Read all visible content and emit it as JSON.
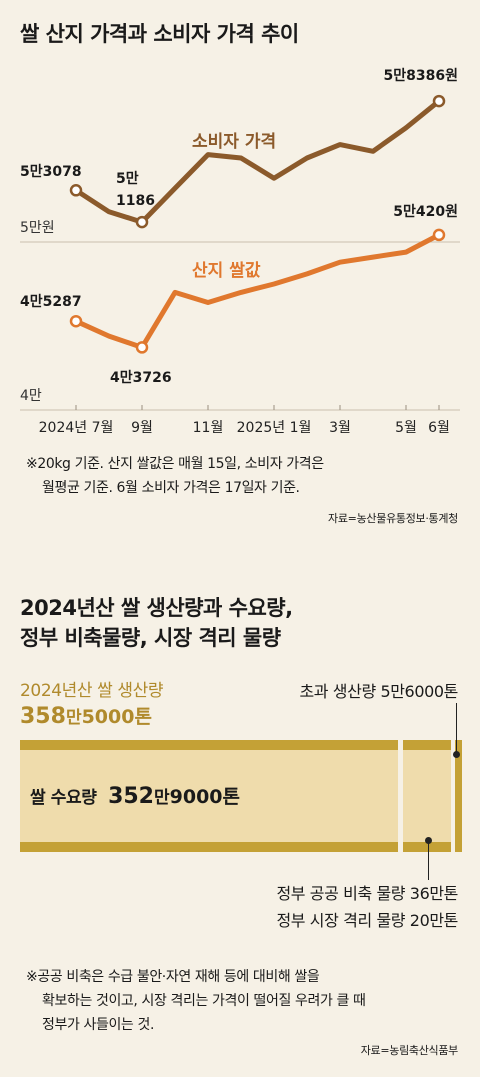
{
  "chart1": {
    "title": "쌀 산지 가격과 소비자 가격 추이",
    "xlabels": [
      {
        "label": "2024년 7월",
        "m": 0
      },
      {
        "label": "9월",
        "m": 2
      },
      {
        "label": "11월",
        "m": 4
      },
      {
        "label": "2025년 1월",
        "m": 6
      },
      {
        "label": "3월",
        "m": 8
      },
      {
        "label": "5월",
        "m": 10
      },
      {
        "label": "6월",
        "m": 11
      }
    ],
    "ylabels": [
      {
        "label": "5만원",
        "v": 50000
      },
      {
        "label": "4만",
        "v": 40000
      }
    ],
    "annotations": {
      "consumer_start": "5만3078",
      "consumer_low_1": "5만",
      "consumer_low_2": "1186",
      "consumer_end": "5만8386원",
      "farm_start": "4만5287",
      "farm_low": "4만3726",
      "farm_end": "5만420원"
    },
    "series_labels": {
      "consumer": "소비자 가격",
      "farm": "산지 쌀값"
    },
    "colors": {
      "consumer": "#8b5a2b",
      "farm": "#e0782e"
    },
    "note_1": "※20kg 기준. 산지 쌀값은 매월 15일, 소비자 가격은",
    "note_2": "월평균 기준. 6월 소비자 가격은 17일자 기준.",
    "source": "자료=농산물유통정보·통계청"
  },
  "chart_data": {
    "type": "line",
    "x": [
      "2024-07",
      "2024-08",
      "2024-09",
      "2024-10",
      "2024-11",
      "2024-12",
      "2025-01",
      "2025-02",
      "2025-03",
      "2025-04",
      "2025-05",
      "2025-06"
    ],
    "series": [
      {
        "name": "소비자 가격",
        "values": [
          53078,
          51800,
          51186,
          53200,
          55200,
          55000,
          53800,
          55000,
          55800,
          55400,
          56800,
          58386
        ]
      },
      {
        "name": "산지 쌀값",
        "values": [
          45287,
          44400,
          43726,
          47000,
          46400,
          47000,
          47500,
          48100,
          48800,
          49100,
          49400,
          50420
        ]
      }
    ],
    "ylim": [
      40000,
      60000
    ],
    "y_unit": "원"
  },
  "chart2": {
    "title_1": "2024년산 쌀 생산량과 수요량,",
    "title_2": "정부 비축물량, 시장 격리 물량",
    "production_label": "2024년산 쌀 생산량",
    "production_value_a": "358",
    "production_value_b": "만",
    "production_value_c": "5000톤",
    "surplus_label": "초과 생산량 5만6000톤",
    "demand_label": "쌀 수요량",
    "demand_value_a": "352",
    "demand_value_b": "만",
    "demand_value_c": "9000톤",
    "reserve_label": "정부 공공 비축 물량 36만톤",
    "isolation_label": "정부 시장 격리 물량 20만톤",
    "note_1": "※공공 비축은 수급 불안·자연 재해 등에 대비해 쌀을",
    "note_2": "확보하는 것이고, 시장 격리는 가격이 떨어질 우려가 클 때",
    "note_3": "정부가 사들이는 것.",
    "source": "자료=농림축산식품부"
  },
  "bar_data": {
    "production_tons": 3585000,
    "demand_tons": 3529000,
    "surplus_tons": 56000,
    "reserve_tons": 360000,
    "isolation_tons": 200000
  }
}
